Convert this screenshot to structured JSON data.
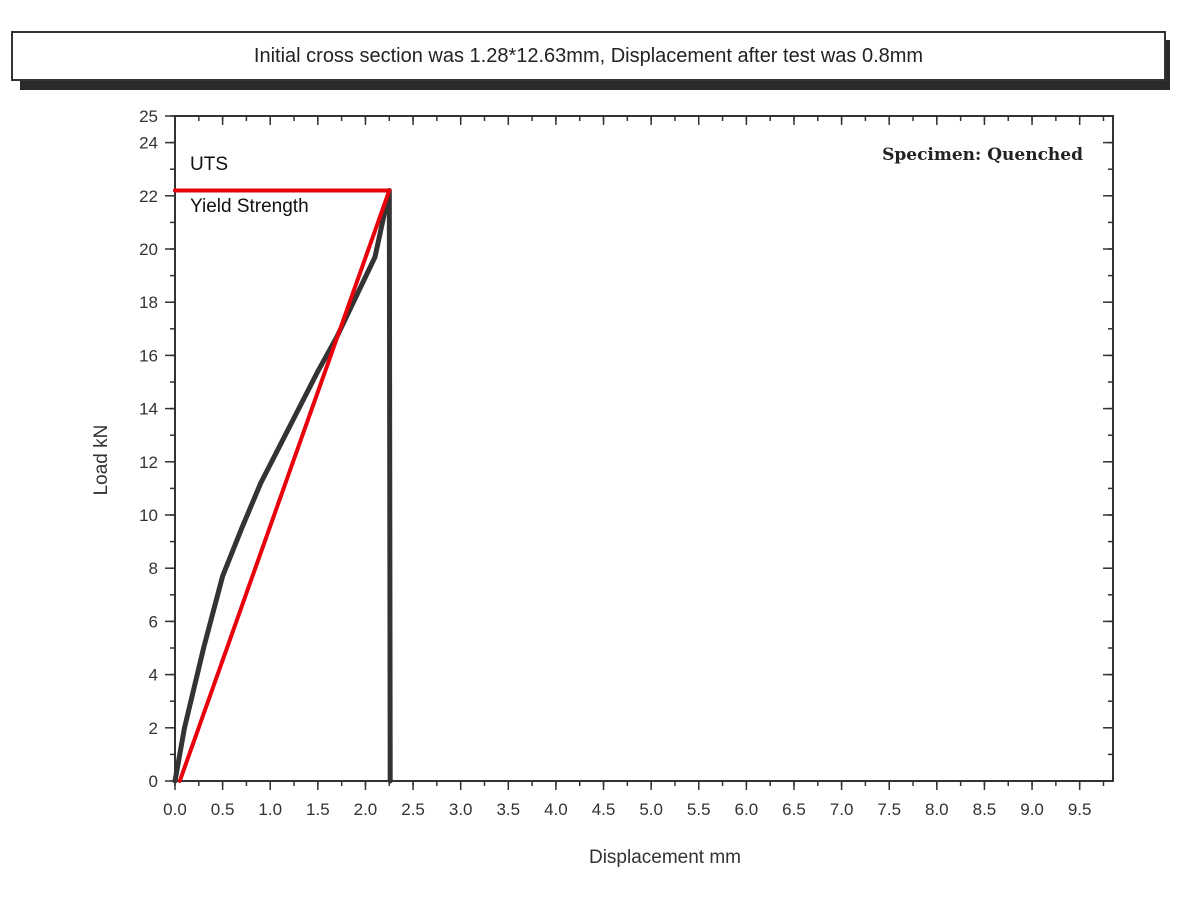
{
  "header": {
    "caption": "Initial cross section was 1.28*12.63mm, Displacement after test was 0.8mm"
  },
  "chart_data": {
    "type": "line",
    "xlabel": "Displacement   mm",
    "ylabel": "Load kN",
    "xlim": [
      0,
      9.85
    ],
    "ylim": [
      0,
      25
    ],
    "x_ticks": [
      "0.0",
      "0.5",
      "1.0",
      "1.5",
      "2.0",
      "2.5",
      "3.0",
      "3.5",
      "4.0",
      "4.5",
      "5.0",
      "5.5",
      "6.0",
      "6.5",
      "7.0",
      "7.5",
      "8.0",
      "8.5",
      "9.0",
      "9.5"
    ],
    "y_ticks": [
      "0",
      "2",
      "4",
      "6",
      "8",
      "10",
      "12",
      "14",
      "16",
      "18",
      "20",
      "22",
      "24",
      "25"
    ],
    "grid": false,
    "annotations": {
      "specimen": "Specimen: Quenched",
      "uts": "UTS",
      "yield": "Yield Strength"
    },
    "series": [
      {
        "color": "#333333",
        "points": [
          [
            0.0,
            0.0
          ],
          [
            0.1,
            2.0
          ],
          [
            0.3,
            5.0
          ],
          [
            0.5,
            7.7
          ],
          [
            0.7,
            9.5
          ],
          [
            0.9,
            11.2
          ],
          [
            1.1,
            12.6
          ],
          [
            1.3,
            14.0
          ],
          [
            1.5,
            15.4
          ],
          [
            1.7,
            16.7
          ],
          [
            1.9,
            18.2
          ],
          [
            2.1,
            19.7
          ],
          [
            2.25,
            22.2
          ],
          [
            2.26,
            0.0
          ]
        ]
      },
      {
        "color": "#e8000b",
        "points": [
          [
            0.05,
            0.0
          ],
          [
            2.25,
            22.2
          ]
        ]
      },
      {
        "color": "#e8000b",
        "points": [
          [
            0.0,
            22.2
          ],
          [
            2.25,
            22.2
          ]
        ]
      }
    ]
  }
}
